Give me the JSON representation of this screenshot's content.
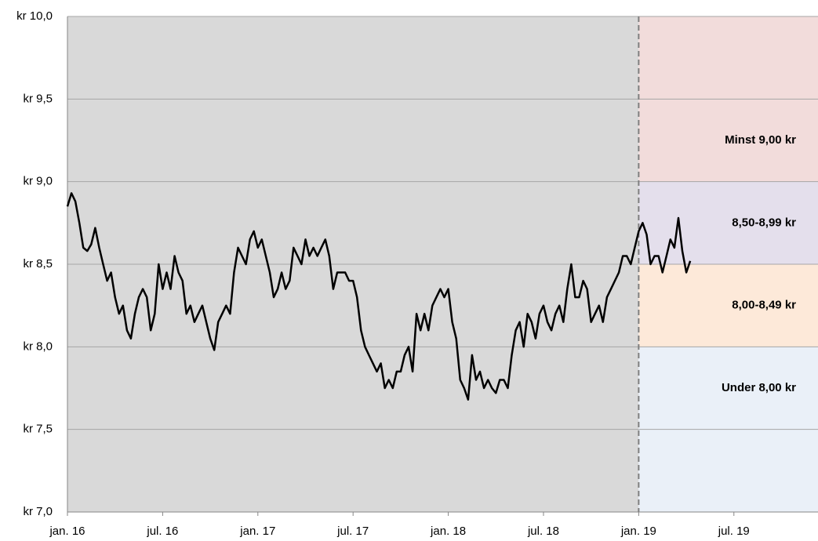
{
  "chart_data": {
    "type": "line",
    "x": [
      0,
      0.25,
      0.5,
      0.75,
      1,
      1.25,
      1.5,
      1.75,
      2,
      2.25,
      2.5,
      2.75,
      3,
      3.25,
      3.5,
      3.75,
      4,
      4.25,
      4.5,
      4.75,
      5,
      5.25,
      5.5,
      5.75,
      6,
      6.25,
      6.5,
      6.75,
      7,
      7.25,
      7.5,
      7.75,
      8,
      8.25,
      8.5,
      8.75,
      9,
      9.25,
      9.5,
      9.75,
      10,
      10.25,
      10.5,
      10.75,
      11,
      11.25,
      11.5,
      11.75,
      12,
      12.25,
      12.5,
      12.75,
      13,
      13.25,
      13.5,
      13.75,
      14,
      14.25,
      14.5,
      14.75,
      15,
      15.25,
      15.5,
      15.75,
      16,
      16.25,
      16.5,
      16.75,
      17,
      17.25,
      17.5,
      17.75,
      18,
      18.25,
      18.5,
      18.75,
      19,
      19.25,
      19.5,
      19.75,
      20,
      20.25,
      20.5,
      20.75,
      21,
      21.25,
      21.5,
      21.75,
      22,
      22.25,
      22.5,
      22.75,
      23,
      23.25,
      23.5,
      23.75,
      24,
      24.25,
      24.5,
      24.75,
      25,
      25.25,
      25.5,
      25.75,
      26,
      26.25,
      26.5,
      26.75,
      27,
      27.25,
      27.5,
      27.75,
      28,
      28.25,
      28.5,
      28.75,
      29,
      29.25,
      29.5,
      29.75,
      30,
      30.25,
      30.5,
      30.75,
      31,
      31.25,
      31.5,
      31.75,
      32,
      32.25,
      32.5,
      32.75,
      33,
      33.25,
      33.5,
      33.75,
      34,
      34.25,
      34.5,
      34.75,
      35,
      35.25,
      35.5,
      35.75,
      36,
      36.25,
      36.5,
      36.75,
      37,
      37.25,
      37.5,
      37.75,
      38,
      38.25,
      38.5,
      38.75,
      39,
      39.25
    ],
    "series": [
      {
        "color": "#000000",
        "values": [
          8.85,
          8.93,
          8.88,
          8.75,
          8.6,
          8.58,
          8.62,
          8.72,
          8.6,
          8.5,
          8.4,
          8.45,
          8.3,
          8.2,
          8.25,
          8.1,
          8.05,
          8.2,
          8.3,
          8.35,
          8.3,
          8.1,
          8.2,
          8.5,
          8.35,
          8.45,
          8.35,
          8.55,
          8.45,
          8.4,
          8.2,
          8.25,
          8.15,
          8.2,
          8.25,
          8.15,
          8.05,
          7.98,
          8.15,
          8.2,
          8.25,
          8.2,
          8.45,
          8.6,
          8.55,
          8.5,
          8.65,
          8.7,
          8.6,
          8.65,
          8.55,
          8.45,
          8.3,
          8.35,
          8.45,
          8.35,
          8.4,
          8.6,
          8.55,
          8.5,
          8.65,
          8.55,
          8.6,
          8.55,
          8.6,
          8.65,
          8.55,
          8.35,
          8.45,
          8.45,
          8.45,
          8.4,
          8.4,
          8.3,
          8.1,
          8.0,
          7.95,
          7.9,
          7.85,
          7.9,
          7.75,
          7.8,
          7.75,
          7.85,
          7.85,
          7.95,
          8.0,
          7.85,
          8.2,
          8.1,
          8.2,
          8.1,
          8.25,
          8.3,
          8.35,
          8.3,
          8.35,
          8.15,
          8.05,
          7.8,
          7.75,
          7.68,
          7.95,
          7.8,
          7.85,
          7.75,
          7.8,
          7.75,
          7.72,
          7.8,
          7.8,
          7.75,
          7.95,
          8.1,
          8.15,
          8.0,
          8.2,
          8.15,
          8.05,
          8.2,
          8.25,
          8.15,
          8.1,
          8.2,
          8.25,
          8.15,
          8.35,
          8.5,
          8.3,
          8.3,
          8.4,
          8.35,
          8.15,
          8.2,
          8.25,
          8.15,
          8.3,
          8.35,
          8.4,
          8.45,
          8.55,
          8.55,
          8.5,
          8.6,
          8.7,
          8.75,
          8.68,
          8.5,
          8.55,
          8.55,
          8.45,
          8.55,
          8.65,
          8.6,
          8.78,
          8.58,
          8.45,
          8.52
        ]
      }
    ],
    "xlim": [
      0,
      47.3
    ],
    "xticks": [
      {
        "value": 0,
        "label": "jan. 16"
      },
      {
        "value": 6,
        "label": "jul. 16"
      },
      {
        "value": 12,
        "label": "jan. 17"
      },
      {
        "value": 18,
        "label": "jul. 17"
      },
      {
        "value": 24,
        "label": "jan. 18"
      },
      {
        "value": 30,
        "label": "jul. 18"
      },
      {
        "value": 36,
        "label": "jan. 19"
      },
      {
        "value": 42,
        "label": "jul. 19"
      }
    ],
    "ylim": [
      7,
      10
    ],
    "yticks": [
      {
        "value": 7,
        "label": "kr 7,0"
      },
      {
        "value": 7.5,
        "label": "kr 7,5"
      },
      {
        "value": 8,
        "label": "kr 8,0"
      },
      {
        "value": 8.5,
        "label": "kr 8,5"
      },
      {
        "value": 9,
        "label": "kr 9,0"
      },
      {
        "value": 9.5,
        "label": "kr 9,5"
      },
      {
        "value": 10,
        "label": "kr 10,0"
      }
    ],
    "grid": true,
    "history_color": "#d9d9d9",
    "divider": 36,
    "bands": [
      {
        "from": 9,
        "to": 10,
        "label": "Minst 9,00 kr",
        "color": "#f2dcdb"
      },
      {
        "from": 8.5,
        "to": 9,
        "label": "8,50-8,99 kr",
        "color": "#e4dfec"
      },
      {
        "from": 8,
        "to": 8.5,
        "label": "8,00-8,49 kr",
        "color": "#fde9d9"
      },
      {
        "from": 7,
        "to": 8,
        "label": "Under 8,00 kr",
        "color": "#eaf0f8"
      }
    ]
  }
}
